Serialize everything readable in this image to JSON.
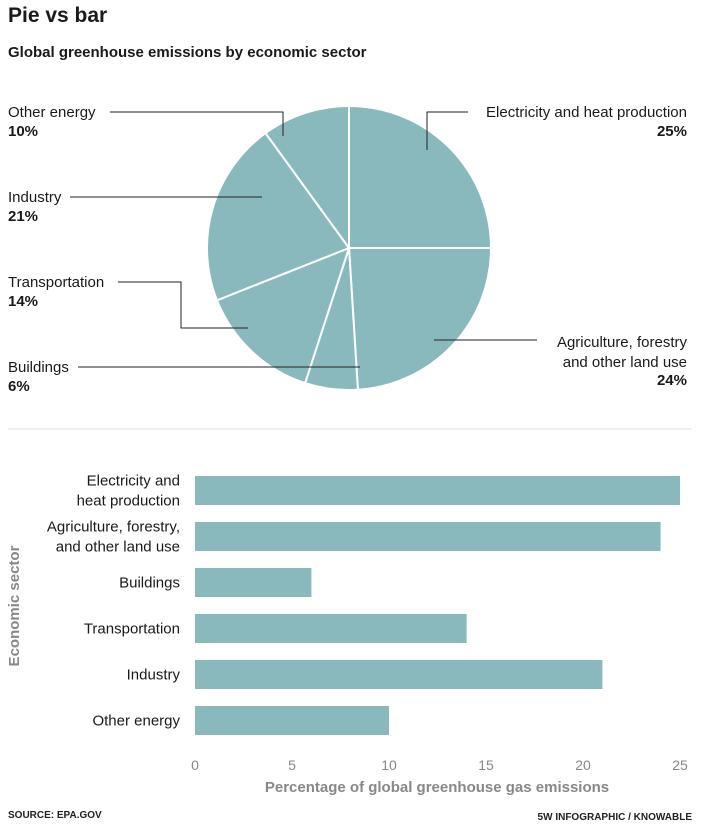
{
  "header": {
    "title": "Pie vs bar",
    "subtitle": "Global greenhouse emissions by economic sector"
  },
  "colors": {
    "fill": "#89b9bd",
    "slice_stroke": "#ffffff",
    "leader": "#222222",
    "axis_text": "#888888",
    "divider": "#e0e0e0"
  },
  "chart_data": [
    {
      "type": "pie",
      "slices": [
        {
          "label": "Electricity and heat production",
          "value": 25,
          "value_label": "25%"
        },
        {
          "label": "Agriculture, forestry and other land use",
          "value": 24,
          "value_label": "24%"
        },
        {
          "label": "Buildings",
          "value": 6,
          "value_label": "6%"
        },
        {
          "label": "Transportation",
          "value": 14,
          "value_label": "14%"
        },
        {
          "label": "Industry",
          "value": 21,
          "value_label": "21%"
        },
        {
          "label": "Other energy",
          "value": 10,
          "value_label": "10%"
        }
      ]
    },
    {
      "type": "bar",
      "orientation": "horizontal",
      "categories": [
        "Electricity and heat production",
        "Agriculture, forestry, and other land use",
        "Buildings",
        "Transportation",
        "Industry",
        "Other energy"
      ],
      "values": [
        25,
        24,
        6,
        14,
        21,
        10
      ],
      "xlabel": "Percentage of global greenhouse gas emissions",
      "ylabel": "Economic sector",
      "xlim": [
        0,
        25
      ],
      "xticks": [
        0,
        5,
        10,
        15,
        20,
        25
      ],
      "grid": false
    }
  ],
  "footer": {
    "source": "SOURCE: EPA.GOV",
    "credit": "5W INFOGRAPHIC / KNOWABLE"
  }
}
